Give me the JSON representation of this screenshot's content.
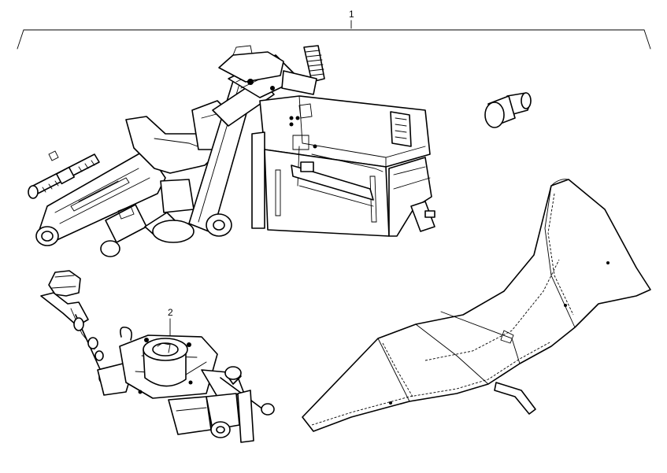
{
  "callouts": {
    "assembly": "1",
    "sub_assembly": "2"
  }
}
